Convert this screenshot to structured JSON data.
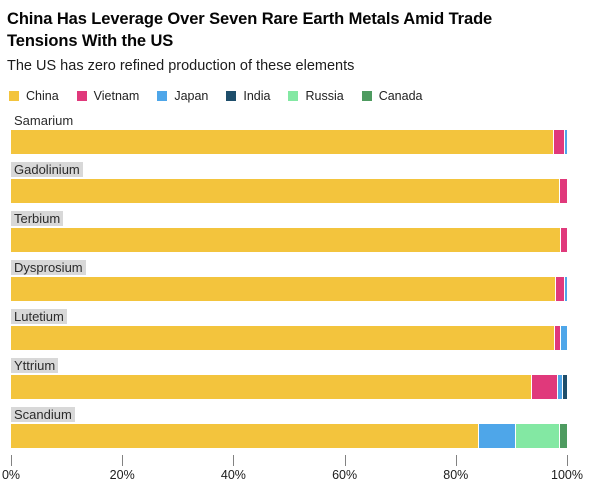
{
  "header": {
    "title_line1": "China Has Leverage Over Seven Rare Earth Metals Amid Trade",
    "title_line2": "Tensions With the US",
    "subtitle": "The US has zero refined production of these elements"
  },
  "colors": {
    "china": "#F3C43D",
    "vietnam": "#E0397B",
    "japan": "#4EA6E9",
    "india": "#1E4E6B",
    "russia": "#83E8A3",
    "canada": "#4E9B60",
    "label_highlight_bg": "#D8D8D8",
    "axis_tick": "#828282"
  },
  "chart_data": {
    "type": "bar",
    "stacked": true,
    "orientation": "horizontal",
    "unit": "%",
    "title": "China Has Leverage Over Seven Rare Earth Metals Amid Trade Tensions With the US",
    "subtitle": "The US has zero refined production of these elements",
    "legend_position": "top",
    "grid": false,
    "categories": [
      {
        "label": "Samarium",
        "highlight": false
      },
      {
        "label": "Gadolinium",
        "highlight": true
      },
      {
        "label": "Terbium",
        "highlight": true
      },
      {
        "label": "Dysprosium",
        "highlight": true
      },
      {
        "label": "Lutetium",
        "highlight": true
      },
      {
        "label": "Yttrium",
        "highlight": true
      },
      {
        "label": "Scandium",
        "highlight": true
      }
    ],
    "series": [
      {
        "name": "China",
        "color": "#F3C43D",
        "values": [
          97.5,
          98.5,
          98.7,
          97.8,
          97.6,
          93.5,
          84.0
        ]
      },
      {
        "name": "Vietnam",
        "color": "#E0397B",
        "values": [
          2.0,
          1.5,
          1.3,
          1.7,
          1.2,
          4.7,
          0
        ]
      },
      {
        "name": "Japan",
        "color": "#4EA6E9",
        "values": [
          0.5,
          0,
          0,
          0.5,
          1.2,
          0.9,
          6.7
        ]
      },
      {
        "name": "India",
        "color": "#1E4E6B",
        "values": [
          0,
          0,
          0,
          0,
          0,
          0.9,
          0
        ]
      },
      {
        "name": "Russia",
        "color": "#83E8A3",
        "values": [
          0,
          0,
          0,
          0,
          0,
          0,
          7.8
        ]
      },
      {
        "name": "Canada",
        "color": "#4E9B60",
        "values": [
          0,
          0,
          0,
          0,
          0,
          0,
          1.5
        ]
      }
    ],
    "x_axis": {
      "range": [
        0,
        100
      ],
      "ticks": [
        {
          "label": "0%",
          "value": 0
        },
        {
          "label": "20%",
          "value": 20
        },
        {
          "label": "40%",
          "value": 40
        },
        {
          "label": "60%",
          "value": 60
        },
        {
          "label": "80%",
          "value": 80
        },
        {
          "label": "100%",
          "value": 100
        }
      ]
    }
  }
}
